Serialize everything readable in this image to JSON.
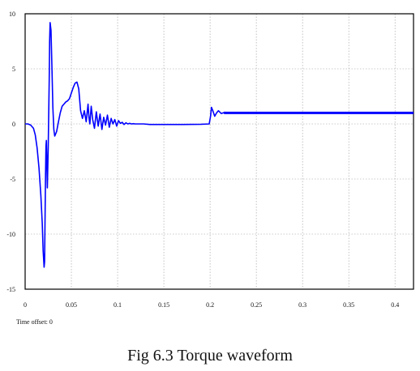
{
  "caption": "Fig 6.3 Torque waveform",
  "time_offset_label": "Time offset: 0",
  "chart_data": {
    "type": "line",
    "title": "",
    "xlabel": "",
    "ylabel": "",
    "xlim": [
      0,
      0.42
    ],
    "ylim": [
      -15,
      10
    ],
    "grid": true,
    "x_ticks": [
      0,
      0.05,
      0.1,
      0.15,
      0.2,
      0.25,
      0.3,
      0.35,
      0.4
    ],
    "x_tick_labels": [
      "0",
      "0.05",
      "0.1",
      "0.15",
      "0.2",
      "0.25",
      "0.3",
      "0.35",
      "0.4"
    ],
    "y_ticks": [
      10,
      5,
      0,
      -5,
      -10,
      -15
    ],
    "y_tick_labels": [
      "10",
      "5",
      "0",
      "-5",
      "-10",
      "-15"
    ],
    "line_color": "#0000ff",
    "series": [
      {
        "x": [
          0,
          0.003,
          0.006,
          0.009,
          0.011,
          0.013,
          0.015,
          0.017,
          0.0185,
          0.0195,
          0.0205,
          0.021,
          0.0215,
          0.022,
          0.0225,
          0.023,
          0.024,
          0.025,
          0.026,
          0.0265,
          0.027,
          0.028,
          0.029,
          0.03,
          0.031,
          0.032,
          0.034,
          0.036,
          0.038,
          0.04,
          0.042,
          0.044,
          0.046,
          0.048,
          0.05,
          0.052,
          0.054,
          0.056,
          0.058,
          0.06,
          0.062,
          0.064,
          0.066,
          0.068,
          0.069,
          0.07,
          0.0715,
          0.073,
          0.075,
          0.077,
          0.079,
          0.081,
          0.083,
          0.085,
          0.087,
          0.089,
          0.091,
          0.093,
          0.095,
          0.097,
          0.099,
          0.101,
          0.103,
          0.105,
          0.107,
          0.109,
          0.111,
          0.113,
          0.115,
          0.117,
          0.119,
          0.121,
          0.124,
          0.128,
          0.135,
          0.15,
          0.17,
          0.19,
          0.199,
          0.2005,
          0.2015,
          0.203,
          0.205,
          0.207,
          0.209,
          0.212,
          0.216,
          0.22,
          0.23,
          0.25,
          0.3,
          0.35,
          0.4,
          0.42
        ],
        "y": [
          0,
          0,
          -0.1,
          -0.4,
          -1.0,
          -2.2,
          -4.0,
          -6.5,
          -9.0,
          -11.5,
          -13.0,
          -12.5,
          -9.0,
          -5.0,
          -2.0,
          -1.5,
          -5.8,
          -2.0,
          4.0,
          7.5,
          9.2,
          8.5,
          5.0,
          1.5,
          -0.5,
          -1.1,
          -0.7,
          0.2,
          1.0,
          1.6,
          1.8,
          2.0,
          2.1,
          2.3,
          2.8,
          3.3,
          3.7,
          3.8,
          3.2,
          1.2,
          0.5,
          1.2,
          0.2,
          1.8,
          0.6,
          0.0,
          1.6,
          0.4,
          -0.4,
          1.1,
          -0.2,
          0.9,
          -0.5,
          0.6,
          -0.1,
          0.8,
          -0.3,
          0.5,
          0.0,
          0.4,
          -0.2,
          0.3,
          0.05,
          0.15,
          -0.05,
          0.1,
          0.0,
          0.05,
          0.0,
          0.02,
          0.0,
          0.0,
          0.0,
          0.0,
          -0.05,
          -0.05,
          -0.05,
          -0.03,
          0.0,
          0.7,
          1.5,
          1.2,
          0.7,
          1.0,
          1.2,
          0.95,
          1.05,
          1.0,
          1.0,
          1.0,
          1.0,
          1.0,
          1.0,
          1.0
        ]
      }
    ]
  }
}
